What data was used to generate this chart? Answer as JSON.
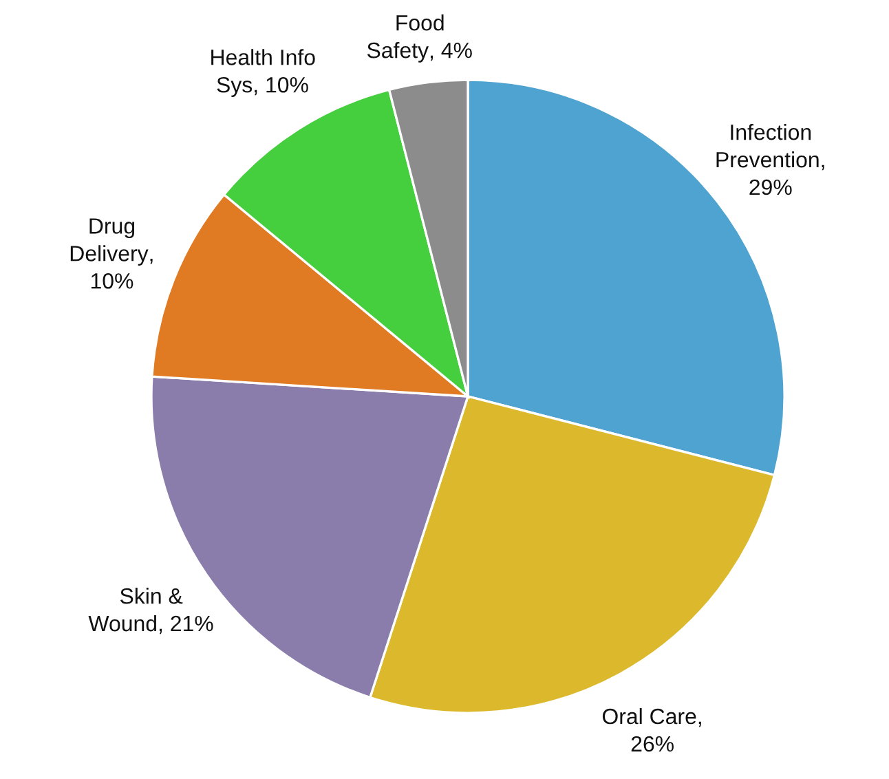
{
  "chart_data": {
    "type": "pie",
    "categories": [
      "Infection Prevention",
      "Oral Care",
      "Skin & Wound",
      "Drug Delivery",
      "Health Info Sys",
      "Food Safety"
    ],
    "values": [
      29,
      26,
      21,
      10,
      10,
      4
    ],
    "value_labels": [
      ", 29%",
      ", 26%",
      ", 21%",
      ", 10%",
      ", 10%",
      ", 4%"
    ],
    "colors": [
      "#4fa3d0",
      "#dcb92c",
      "#8a7dab",
      "#e07b23",
      "#45ce3d",
      "#8c8c8c"
    ]
  }
}
